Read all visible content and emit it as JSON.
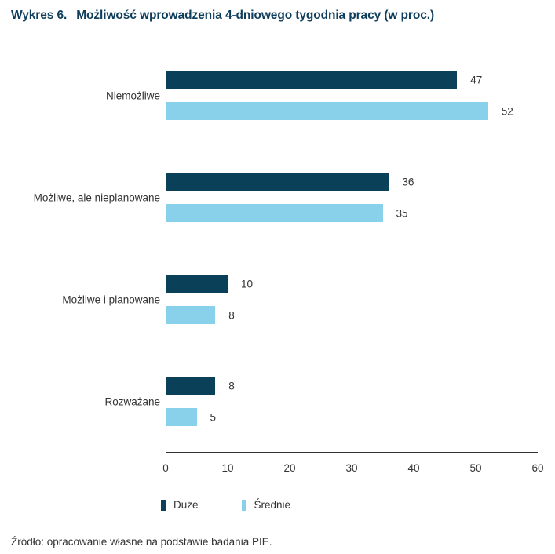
{
  "header": {
    "number": "Wykres 6.",
    "title": "Możliwość wprowadzenia 4-dniowego tygodnia pracy (w proc.)"
  },
  "legend": [
    {
      "label": "Duże",
      "color": "#0b4059"
    },
    {
      "label": "Średnie",
      "color": "#89d0ea"
    }
  ],
  "x_ticks": [
    "0",
    "10",
    "20",
    "30",
    "40",
    "50",
    "60"
  ],
  "categories": [
    {
      "label": "Niemożliwe",
      "big": "47",
      "mid": "52"
    },
    {
      "label": "Możliwe, ale nieplanowane",
      "big": "36",
      "mid": "35"
    },
    {
      "label": "Możliwe i planowane",
      "big": "10",
      "mid": "8"
    },
    {
      "label": "Rozważane",
      "big": "8",
      "mid": "5"
    }
  ],
  "source": "Źródło: opracowanie własne na podstawie badania PIE.",
  "chart_data": {
    "type": "bar",
    "orientation": "horizontal",
    "title": "Wykres 6. Możliwość wprowadzenia 4-dniowego tygodnia pracy (w proc.)",
    "categories": [
      "Niemożliwe",
      "Możliwe, ale nieplanowane",
      "Możliwe i planowane",
      "Rozważane"
    ],
    "series": [
      {
        "name": "Duże",
        "color": "#0b4059",
        "values": [
          47,
          36,
          10,
          8
        ]
      },
      {
        "name": "Średnie",
        "color": "#89d0ea",
        "values": [
          52,
          35,
          8,
          5
        ]
      }
    ],
    "xlabel": "",
    "ylabel": "",
    "xlim": [
      0,
      60
    ],
    "x_ticks": [
      0,
      10,
      20,
      30,
      40,
      50,
      60
    ],
    "grid": false,
    "legend_position": "bottom",
    "data_labels": true,
    "source": "Źródło: opracowanie własne na podstawie badania PIE."
  }
}
